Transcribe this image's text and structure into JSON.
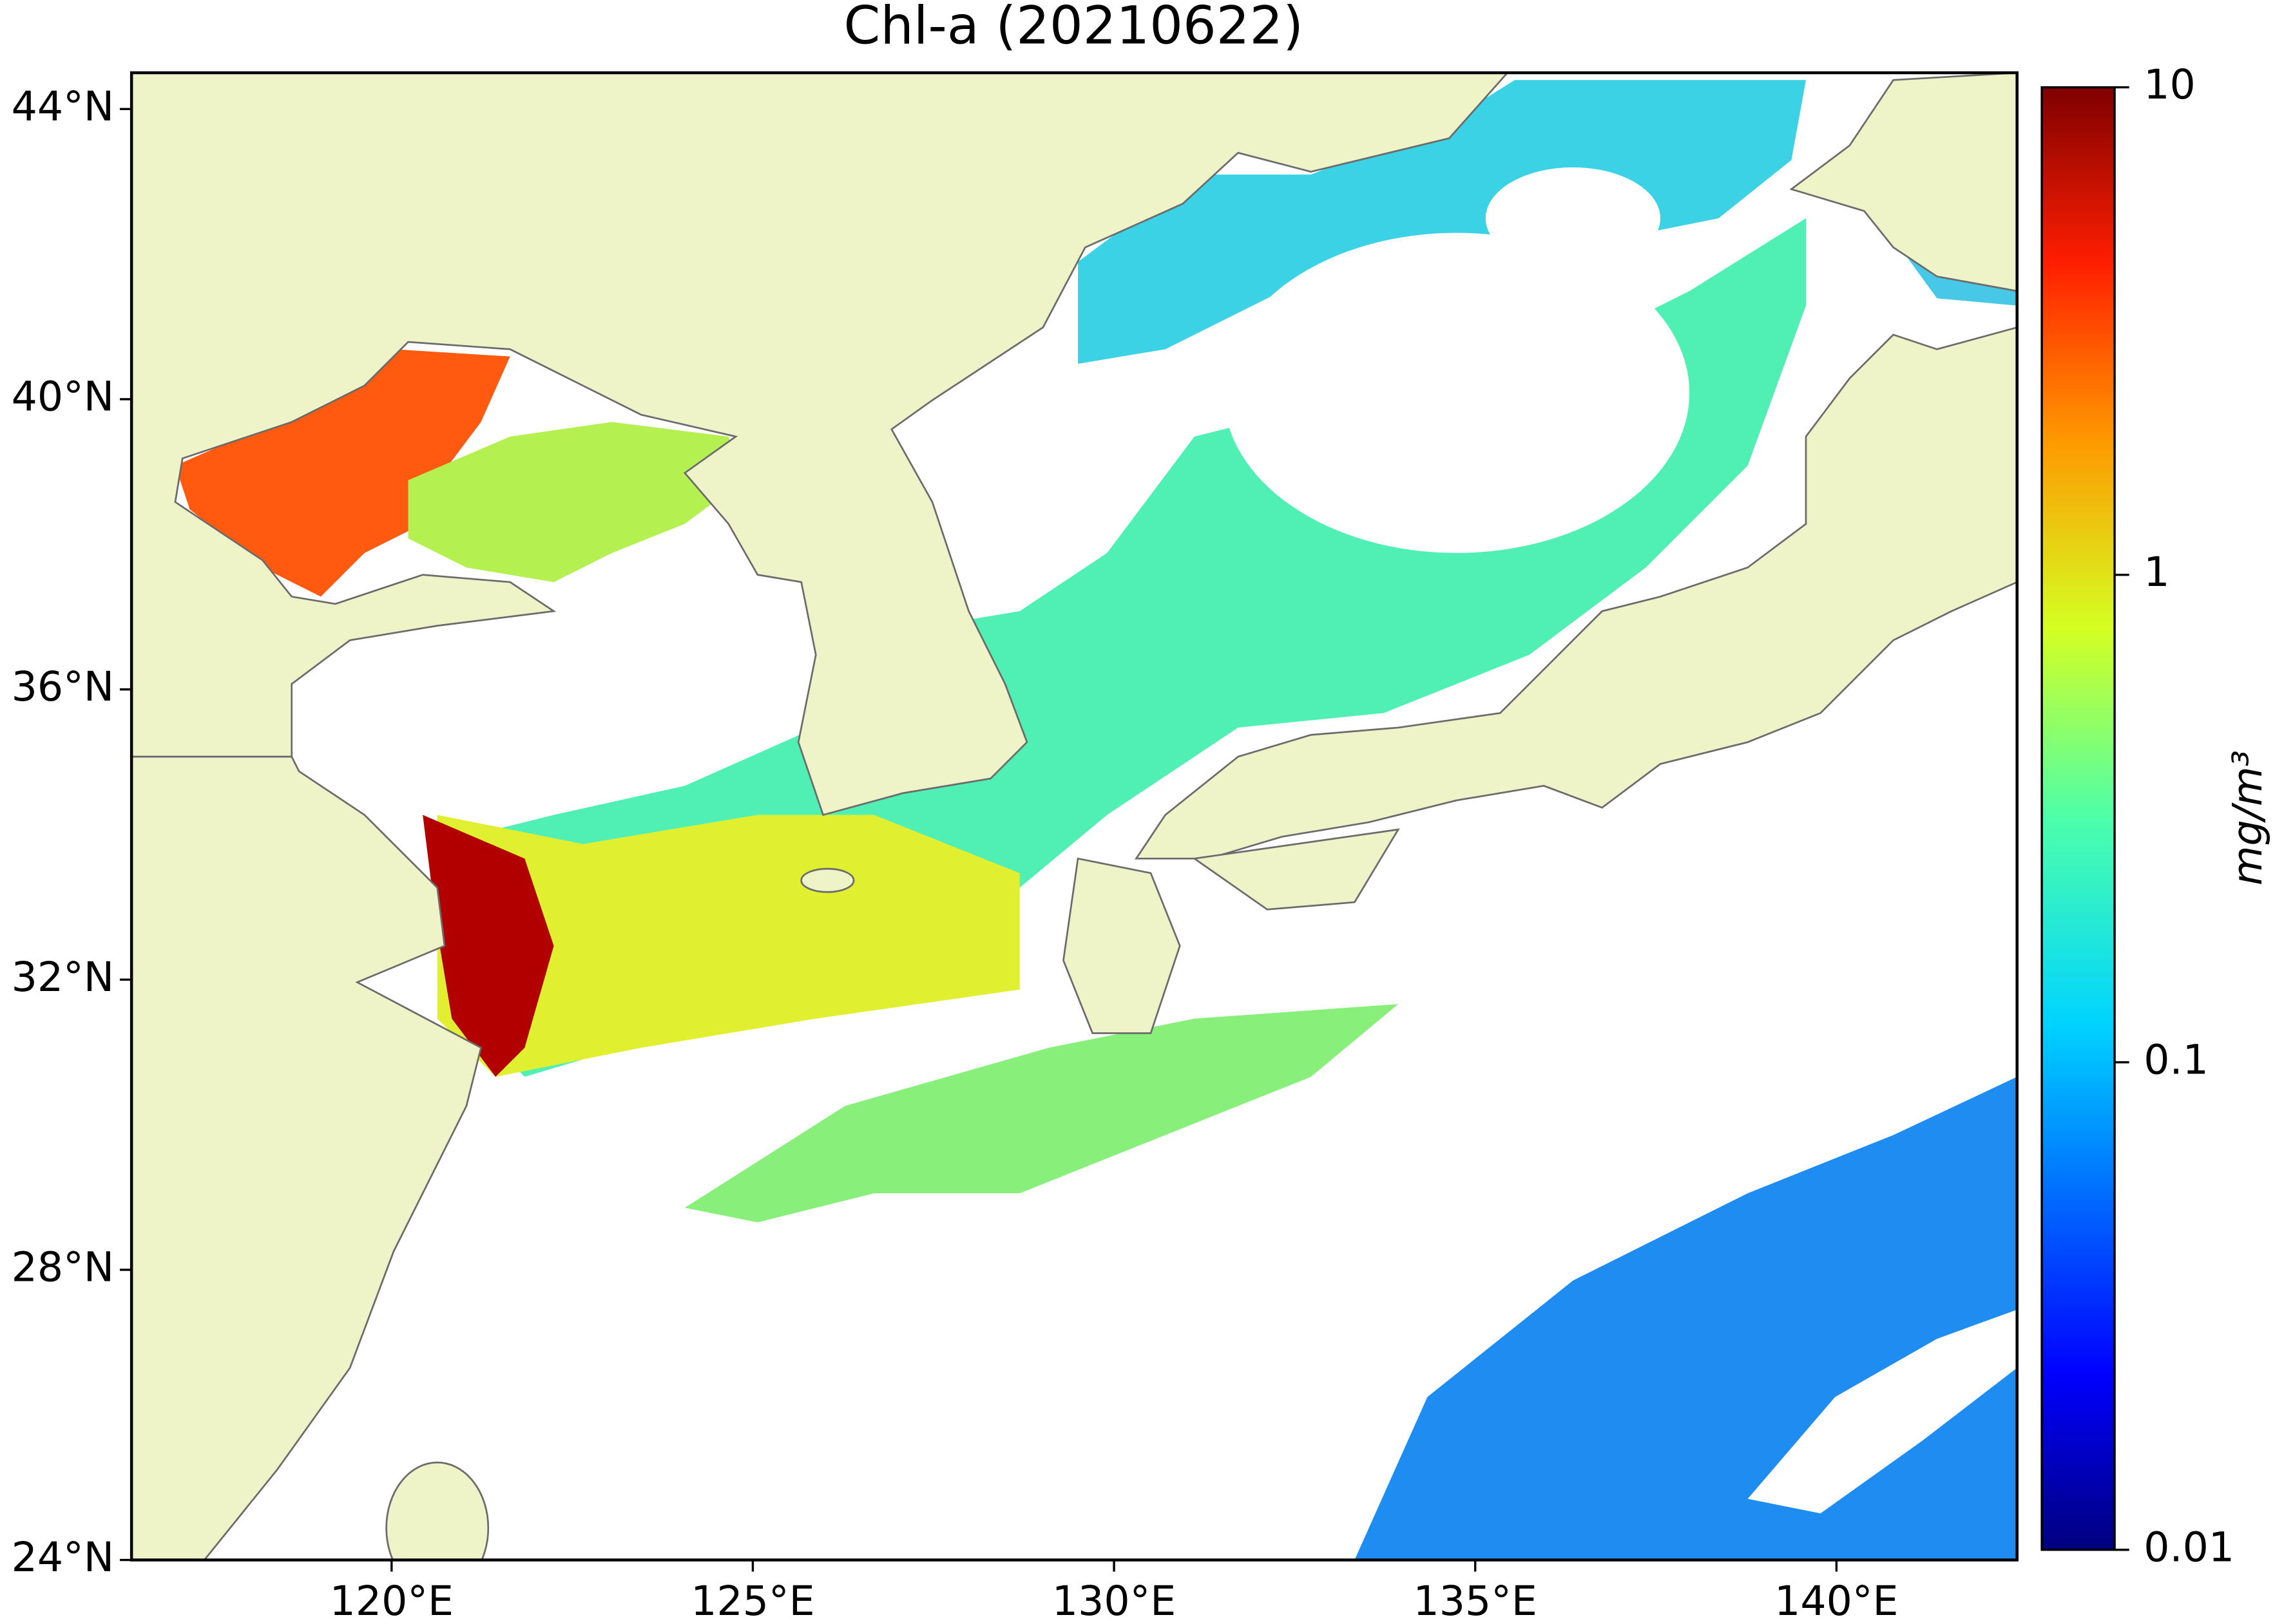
{
  "chart_data": {
    "type": "map",
    "title": "Chl-a (20210622)",
    "xlim": [
      116.4,
      142.5
    ],
    "xticks": [
      {
        "value": 120,
        "label": "120°E"
      },
      {
        "value": 125,
        "label": "125°E"
      },
      {
        "value": 130,
        "label": "130°E"
      },
      {
        "value": 135,
        "label": "135°E"
      },
      {
        "value": 140,
        "label": "140°E"
      }
    ],
    "ylim": [
      24,
      44.5
    ],
    "yticks": [
      {
        "value": 24,
        "label": "24°N"
      },
      {
        "value": 28,
        "label": "28°N"
      },
      {
        "value": 32,
        "label": "32°N"
      },
      {
        "value": 36,
        "label": "36°N"
      },
      {
        "value": 40,
        "label": "40°N"
      },
      {
        "value": 44,
        "label": "44°N"
      }
    ],
    "colorbar": {
      "label": "mg/m³",
      "scale": "log",
      "lim": [
        0.01,
        10
      ],
      "ticks": [
        0.01,
        0.1,
        1,
        10
      ]
    }
  }
}
